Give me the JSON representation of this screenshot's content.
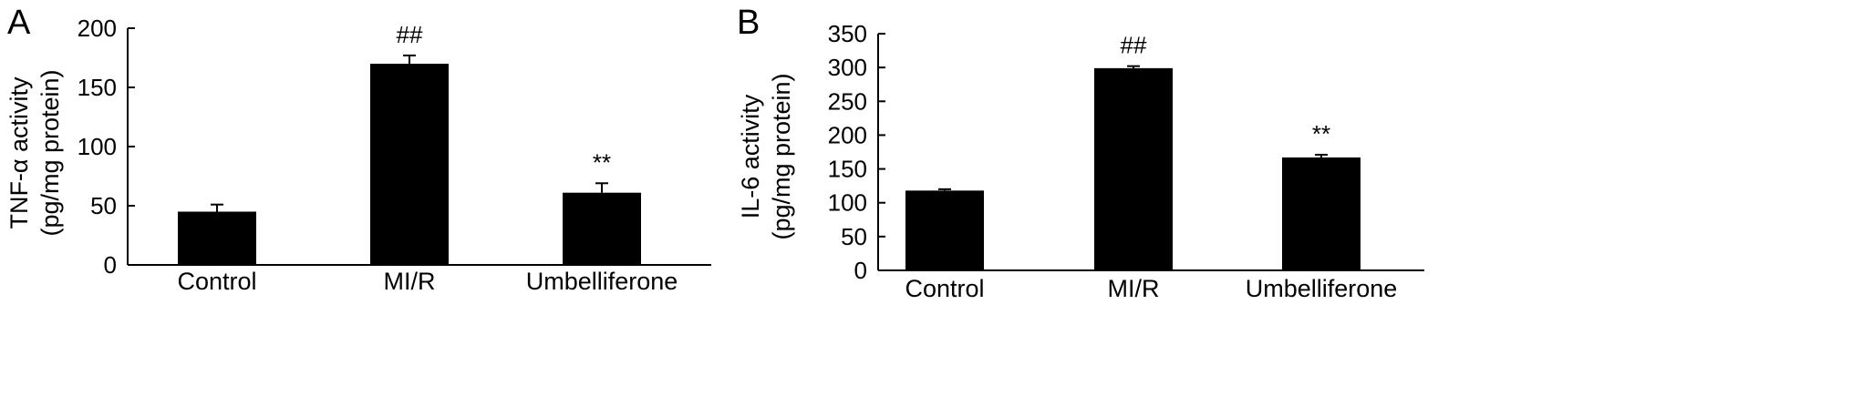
{
  "chart_data": [
    {
      "panel": "A",
      "type": "bar",
      "categories": [
        "Control",
        "MI/R",
        "Umbelliferone"
      ],
      "values": [
        45,
        170,
        61
      ],
      "errors": [
        6,
        7,
        8
      ],
      "annotations": [
        "",
        "##",
        "**"
      ],
      "ylabel_line1": "TNF-α activity",
      "ylabel_line2": "(pg/mg protein)",
      "ylim": [
        0,
        200
      ],
      "yticks": [
        "0",
        "50",
        "100",
        "150",
        "200"
      ],
      "bar_color": "#000000",
      "grid": false
    },
    {
      "panel": "B",
      "type": "bar",
      "categories": [
        "Control",
        "MI/R",
        "Umbelliferone"
      ],
      "values": [
        118,
        299,
        167
      ],
      "errors": [
        2,
        3,
        4
      ],
      "annotations": [
        "",
        "##",
        "**"
      ],
      "ylabel_line1": "IL-6 activity",
      "ylabel_line2": "(pg/mg protein)",
      "ylim": [
        0,
        350
      ],
      "yticks": [
        "0",
        "50",
        "100",
        "150",
        "200",
        "250",
        "300",
        "350"
      ],
      "bar_color": "#000000",
      "grid": false
    }
  ]
}
